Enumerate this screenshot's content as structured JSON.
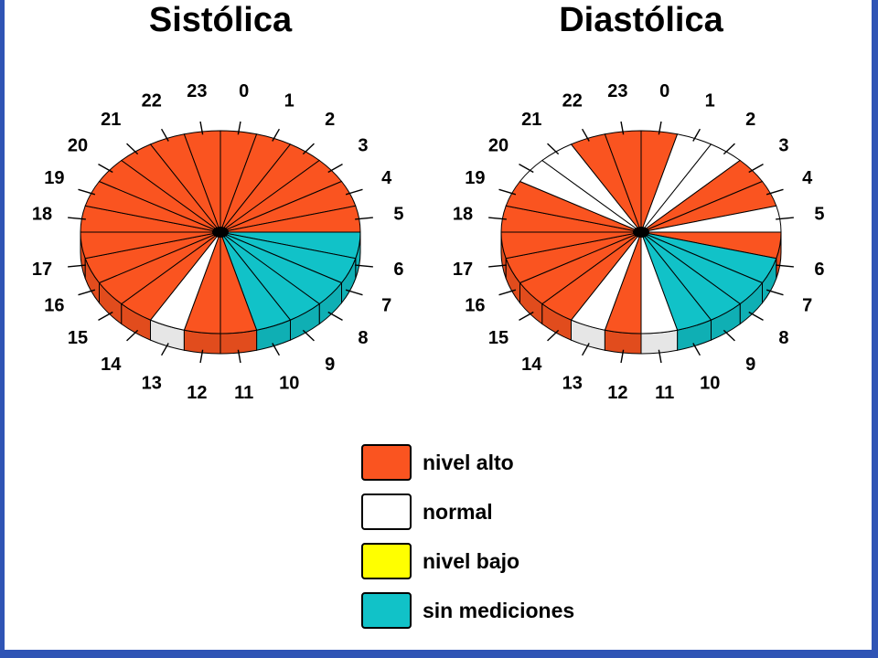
{
  "colors": {
    "nivel_alto": "#fa5420",
    "normal": "#ffffff",
    "nivel_bajo": "#ffff00",
    "sin_mediciones": "#11c2c8",
    "frame": "#2f54b5"
  },
  "legend": {
    "items": [
      {
        "key": "nivel_alto",
        "label": "nivel alto"
      },
      {
        "key": "normal",
        "label": "normal"
      },
      {
        "key": "nivel_bajo",
        "label": "nivel bajo"
      },
      {
        "key": "sin_mediciones",
        "label": "sin mediciones"
      }
    ]
  },
  "chart_data": [
    {
      "type": "pie",
      "title": "Sistólica",
      "categories": [
        "0",
        "1",
        "2",
        "3",
        "4",
        "5",
        "6",
        "7",
        "8",
        "9",
        "10",
        "11",
        "12",
        "13",
        "14",
        "15",
        "16",
        "17",
        "18",
        "19",
        "20",
        "21",
        "22",
        "23"
      ],
      "values": [
        1,
        1,
        1,
        1,
        1,
        1,
        1,
        1,
        1,
        1,
        1,
        1,
        1,
        1,
        1,
        1,
        1,
        1,
        1,
        1,
        1,
        1,
        1,
        1
      ],
      "status": [
        "nivel_alto",
        "nivel_alto",
        "nivel_alto",
        "nivel_alto",
        "nivel_alto",
        "nivel_alto",
        "sin_mediciones",
        "sin_mediciones",
        "sin_mediciones",
        "sin_mediciones",
        "sin_mediciones",
        "nivel_alto",
        "nivel_alto",
        "normal",
        "nivel_alto",
        "nivel_alto",
        "nivel_alto",
        "nivel_alto",
        "nivel_alto",
        "nivel_alto",
        "nivel_alto",
        "nivel_alto",
        "nivel_alto",
        "nivel_alto"
      ]
    },
    {
      "type": "pie",
      "title": "Diastólica",
      "categories": [
        "0",
        "1",
        "2",
        "3",
        "4",
        "5",
        "6",
        "7",
        "8",
        "9",
        "10",
        "11",
        "12",
        "13",
        "14",
        "15",
        "16",
        "17",
        "18",
        "19",
        "20",
        "21",
        "22",
        "23"
      ],
      "values": [
        1,
        1,
        1,
        1,
        1,
        1,
        1,
        1,
        1,
        1,
        1,
        1,
        1,
        1,
        1,
        1,
        1,
        1,
        1,
        1,
        1,
        1,
        1,
        1
      ],
      "status": [
        "nivel_alto",
        "normal",
        "normal",
        "nivel_alto",
        "nivel_alto",
        "normal",
        "nivel_alto",
        "sin_mediciones",
        "sin_mediciones",
        "sin_mediciones",
        "sin_mediciones",
        "normal",
        "nivel_alto",
        "normal",
        "nivel_alto",
        "nivel_alto",
        "nivel_alto",
        "nivel_alto",
        "nivel_alto",
        "nivel_alto",
        "normal",
        "normal",
        "nivel_alto",
        "nivel_alto"
      ]
    }
  ]
}
